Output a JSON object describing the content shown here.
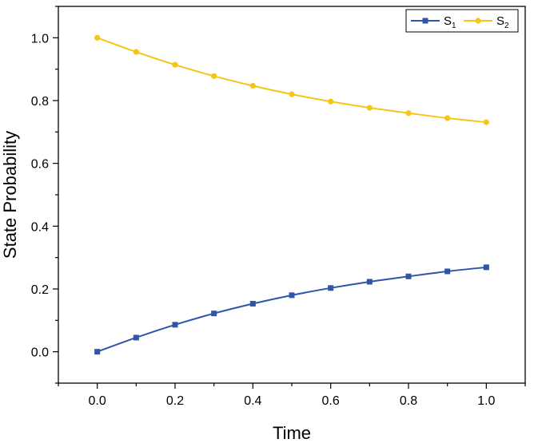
{
  "chart_data": {
    "type": "line",
    "title": "",
    "xlabel": "Time",
    "ylabel": "State Probability",
    "xlim": [
      -0.1,
      1.1
    ],
    "ylim": [
      -0.1,
      1.1
    ],
    "xticks": [
      "0.0",
      "0.2",
      "0.4",
      "0.6",
      "0.8",
      "1.0"
    ],
    "yticks": [
      "0.0",
      "0.2",
      "0.4",
      "0.6",
      "0.8",
      "1.0"
    ],
    "grid": false,
    "legend_position": "top-right",
    "x": [
      0.0,
      0.1,
      0.2,
      0.3,
      0.4,
      0.5,
      0.6,
      0.7,
      0.8,
      0.9,
      1.0
    ],
    "series": [
      {
        "name": "S",
        "subscript": "1",
        "color": "#2E55A8",
        "marker": "square",
        "values": [
          0.0,
          0.045,
          0.086,
          0.122,
          0.153,
          0.18,
          0.203,
          0.223,
          0.24,
          0.256,
          0.269
        ]
      },
      {
        "name": "S",
        "subscript": "2",
        "color": "#F5C518",
        "marker": "circle",
        "values": [
          1.0,
          0.955,
          0.914,
          0.878,
          0.847,
          0.82,
          0.797,
          0.777,
          0.76,
          0.744,
          0.731
        ]
      }
    ]
  }
}
